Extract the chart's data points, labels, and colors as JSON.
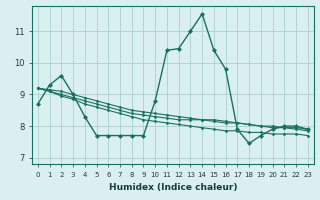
{
  "xlabel": "Humidex (Indice chaleur)",
  "background_color": "#daf0f0",
  "grid_color": "#a8d0d0",
  "line_color": "#1a7060",
  "xlim": [
    -0.5,
    23.5
  ],
  "ylim": [
    6.8,
    11.8
  ],
  "yticks": [
    7,
    8,
    9,
    10,
    11
  ],
  "xticks": [
    0,
    1,
    2,
    3,
    4,
    5,
    6,
    7,
    8,
    9,
    10,
    11,
    12,
    13,
    14,
    15,
    16,
    17,
    18,
    19,
    20,
    21,
    22,
    23
  ],
  "series": [
    [
      8.7,
      9.3,
      9.6,
      9.0,
      8.3,
      7.7,
      7.7,
      7.7,
      7.7,
      7.7,
      8.8,
      10.4,
      10.45,
      11.0,
      11.55,
      10.4,
      9.8,
      7.9,
      7.45,
      7.7,
      7.9,
      8.0,
      8.0,
      7.9
    ],
    [
      9.2,
      9.1,
      9.0,
      8.9,
      8.8,
      8.7,
      8.6,
      8.5,
      8.4,
      8.35,
      8.3,
      8.25,
      8.2,
      8.2,
      8.2,
      8.15,
      8.1,
      8.1,
      8.05,
      8.0,
      8.0,
      7.95,
      7.95,
      7.9
    ],
    [
      9.2,
      9.1,
      8.95,
      8.85,
      8.7,
      8.6,
      8.5,
      8.4,
      8.3,
      8.2,
      8.15,
      8.1,
      8.05,
      8.0,
      7.95,
      7.9,
      7.85,
      7.85,
      7.8,
      7.8,
      7.75,
      7.75,
      7.75,
      7.7
    ],
    [
      9.2,
      9.15,
      9.1,
      9.0,
      8.9,
      8.8,
      8.7,
      8.6,
      8.5,
      8.45,
      8.4,
      8.35,
      8.3,
      8.25,
      8.2,
      8.2,
      8.15,
      8.1,
      8.05,
      8.0,
      7.95,
      7.95,
      7.9,
      7.85
    ]
  ]
}
